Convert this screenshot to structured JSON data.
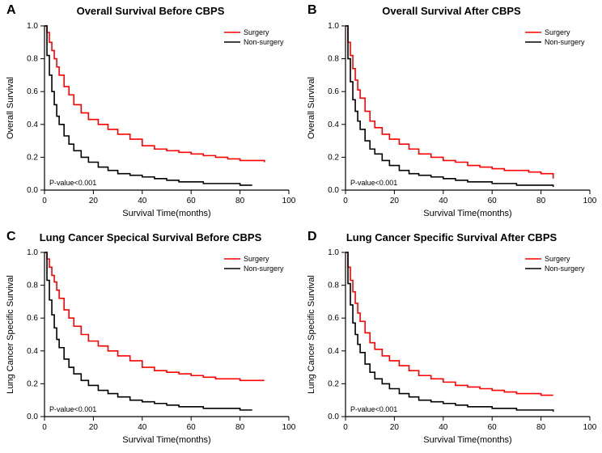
{
  "colors": {
    "surgery": "#ff0000",
    "nonsurgery": "#000000",
    "axis": "#000000",
    "background": "#ffffff"
  },
  "legend": {
    "surgery": "Surgery",
    "nonsurgery": "Non-surgery"
  },
  "xaxis": {
    "label": "Survival Time(months)",
    "min": 0,
    "max": 100,
    "tick_step": 20
  },
  "yaxis": {
    "min": 0,
    "max": 1.0,
    "tick_step": 0.2
  },
  "panels": {
    "A": {
      "letter": "A",
      "title": "Overall Survival Before CBPS",
      "ylabel": "Overall Survival",
      "pvalue": "P-value<0.001",
      "surgery": [
        [
          0,
          1.0
        ],
        [
          1,
          0.96
        ],
        [
          2,
          0.9
        ],
        [
          3,
          0.85
        ],
        [
          4,
          0.8
        ],
        [
          5,
          0.75
        ],
        [
          6,
          0.7
        ],
        [
          8,
          0.63
        ],
        [
          10,
          0.58
        ],
        [
          12,
          0.52
        ],
        [
          15,
          0.47
        ],
        [
          18,
          0.43
        ],
        [
          22,
          0.4
        ],
        [
          26,
          0.37
        ],
        [
          30,
          0.34
        ],
        [
          35,
          0.31
        ],
        [
          40,
          0.27
        ],
        [
          45,
          0.25
        ],
        [
          50,
          0.24
        ],
        [
          55,
          0.23
        ],
        [
          60,
          0.22
        ],
        [
          65,
          0.21
        ],
        [
          70,
          0.2
        ],
        [
          75,
          0.19
        ],
        [
          80,
          0.18
        ],
        [
          85,
          0.18
        ],
        [
          90,
          0.17
        ]
      ],
      "nonsurgery": [
        [
          0,
          1.0
        ],
        [
          1,
          0.82
        ],
        [
          2,
          0.7
        ],
        [
          3,
          0.6
        ],
        [
          4,
          0.52
        ],
        [
          5,
          0.45
        ],
        [
          6,
          0.4
        ],
        [
          8,
          0.33
        ],
        [
          10,
          0.28
        ],
        [
          12,
          0.24
        ],
        [
          15,
          0.2
        ],
        [
          18,
          0.17
        ],
        [
          22,
          0.14
        ],
        [
          26,
          0.12
        ],
        [
          30,
          0.1
        ],
        [
          35,
          0.09
        ],
        [
          40,
          0.08
        ],
        [
          45,
          0.07
        ],
        [
          50,
          0.06
        ],
        [
          55,
          0.05
        ],
        [
          60,
          0.05
        ],
        [
          65,
          0.04
        ],
        [
          70,
          0.04
        ],
        [
          75,
          0.04
        ],
        [
          80,
          0.03
        ],
        [
          85,
          0.03
        ]
      ]
    },
    "B": {
      "letter": "B",
      "title": "Overall Survival After CBPS",
      "ylabel": "Overall Survival",
      "pvalue": "P-value<0.001",
      "surgery": [
        [
          0,
          1.0
        ],
        [
          1,
          0.9
        ],
        [
          2,
          0.82
        ],
        [
          3,
          0.74
        ],
        [
          4,
          0.67
        ],
        [
          5,
          0.61
        ],
        [
          6,
          0.56
        ],
        [
          8,
          0.48
        ],
        [
          10,
          0.42
        ],
        [
          12,
          0.38
        ],
        [
          15,
          0.34
        ],
        [
          18,
          0.31
        ],
        [
          22,
          0.28
        ],
        [
          26,
          0.25
        ],
        [
          30,
          0.22
        ],
        [
          35,
          0.2
        ],
        [
          40,
          0.18
        ],
        [
          45,
          0.17
        ],
        [
          50,
          0.15
        ],
        [
          55,
          0.14
        ],
        [
          60,
          0.13
        ],
        [
          65,
          0.12
        ],
        [
          70,
          0.12
        ],
        [
          75,
          0.11
        ],
        [
          80,
          0.1
        ],
        [
          85,
          0.07
        ]
      ],
      "nonsurgery": [
        [
          0,
          1.0
        ],
        [
          1,
          0.8
        ],
        [
          2,
          0.66
        ],
        [
          3,
          0.55
        ],
        [
          4,
          0.48
        ],
        [
          5,
          0.42
        ],
        [
          6,
          0.37
        ],
        [
          8,
          0.3
        ],
        [
          10,
          0.25
        ],
        [
          12,
          0.22
        ],
        [
          15,
          0.18
        ],
        [
          18,
          0.15
        ],
        [
          22,
          0.12
        ],
        [
          26,
          0.1
        ],
        [
          30,
          0.09
        ],
        [
          35,
          0.08
        ],
        [
          40,
          0.07
        ],
        [
          45,
          0.06
        ],
        [
          50,
          0.05
        ],
        [
          55,
          0.05
        ],
        [
          60,
          0.04
        ],
        [
          65,
          0.04
        ],
        [
          70,
          0.03
        ],
        [
          75,
          0.03
        ],
        [
          80,
          0.03
        ],
        [
          85,
          0.02
        ]
      ]
    },
    "C": {
      "letter": "C",
      "title": "Lung Cancer Specical Survival Before CBPS",
      "ylabel": "Lung Cancer Specific Survival",
      "pvalue": "P-value<0.001",
      "surgery": [
        [
          0,
          1.0
        ],
        [
          1,
          0.96
        ],
        [
          2,
          0.91
        ],
        [
          3,
          0.86
        ],
        [
          4,
          0.82
        ],
        [
          5,
          0.77
        ],
        [
          6,
          0.72
        ],
        [
          8,
          0.65
        ],
        [
          10,
          0.6
        ],
        [
          12,
          0.55
        ],
        [
          15,
          0.5
        ],
        [
          18,
          0.46
        ],
        [
          22,
          0.43
        ],
        [
          26,
          0.4
        ],
        [
          30,
          0.37
        ],
        [
          35,
          0.34
        ],
        [
          40,
          0.3
        ],
        [
          45,
          0.28
        ],
        [
          50,
          0.27
        ],
        [
          55,
          0.26
        ],
        [
          60,
          0.25
        ],
        [
          65,
          0.24
        ],
        [
          70,
          0.23
        ],
        [
          75,
          0.23
        ],
        [
          80,
          0.22
        ],
        [
          85,
          0.22
        ],
        [
          90,
          0.22
        ]
      ],
      "nonsurgery": [
        [
          0,
          1.0
        ],
        [
          1,
          0.83
        ],
        [
          2,
          0.71
        ],
        [
          3,
          0.62
        ],
        [
          4,
          0.54
        ],
        [
          5,
          0.47
        ],
        [
          6,
          0.42
        ],
        [
          8,
          0.35
        ],
        [
          10,
          0.3
        ],
        [
          12,
          0.26
        ],
        [
          15,
          0.22
        ],
        [
          18,
          0.19
        ],
        [
          22,
          0.16
        ],
        [
          26,
          0.14
        ],
        [
          30,
          0.12
        ],
        [
          35,
          0.1
        ],
        [
          40,
          0.09
        ],
        [
          45,
          0.08
        ],
        [
          50,
          0.07
        ],
        [
          55,
          0.06
        ],
        [
          60,
          0.06
        ],
        [
          65,
          0.05
        ],
        [
          70,
          0.05
        ],
        [
          75,
          0.05
        ],
        [
          80,
          0.04
        ],
        [
          85,
          0.04
        ]
      ]
    },
    "D": {
      "letter": "D",
      "title": "Lung Cancer Specific Survival After CBPS",
      "ylabel": "Lung Cancer Specific Survival",
      "pvalue": "P-value<0.001",
      "surgery": [
        [
          0,
          1.0
        ],
        [
          1,
          0.91
        ],
        [
          2,
          0.83
        ],
        [
          3,
          0.76
        ],
        [
          4,
          0.69
        ],
        [
          5,
          0.63
        ],
        [
          6,
          0.58
        ],
        [
          8,
          0.51
        ],
        [
          10,
          0.45
        ],
        [
          12,
          0.41
        ],
        [
          15,
          0.37
        ],
        [
          18,
          0.34
        ],
        [
          22,
          0.31
        ],
        [
          26,
          0.28
        ],
        [
          30,
          0.25
        ],
        [
          35,
          0.23
        ],
        [
          40,
          0.21
        ],
        [
          45,
          0.19
        ],
        [
          50,
          0.18
        ],
        [
          55,
          0.17
        ],
        [
          60,
          0.16
        ],
        [
          65,
          0.15
        ],
        [
          70,
          0.14
        ],
        [
          75,
          0.14
        ],
        [
          80,
          0.13
        ],
        [
          85,
          0.13
        ]
      ],
      "nonsurgery": [
        [
          0,
          1.0
        ],
        [
          1,
          0.81
        ],
        [
          2,
          0.68
        ],
        [
          3,
          0.57
        ],
        [
          4,
          0.5
        ],
        [
          5,
          0.44
        ],
        [
          6,
          0.39
        ],
        [
          8,
          0.32
        ],
        [
          10,
          0.27
        ],
        [
          12,
          0.23
        ],
        [
          15,
          0.2
        ],
        [
          18,
          0.17
        ],
        [
          22,
          0.14
        ],
        [
          26,
          0.12
        ],
        [
          30,
          0.1
        ],
        [
          35,
          0.09
        ],
        [
          40,
          0.08
        ],
        [
          45,
          0.07
        ],
        [
          50,
          0.06
        ],
        [
          55,
          0.06
        ],
        [
          60,
          0.05
        ],
        [
          65,
          0.05
        ],
        [
          70,
          0.04
        ],
        [
          75,
          0.04
        ],
        [
          80,
          0.04
        ],
        [
          85,
          0.03
        ]
      ]
    }
  }
}
